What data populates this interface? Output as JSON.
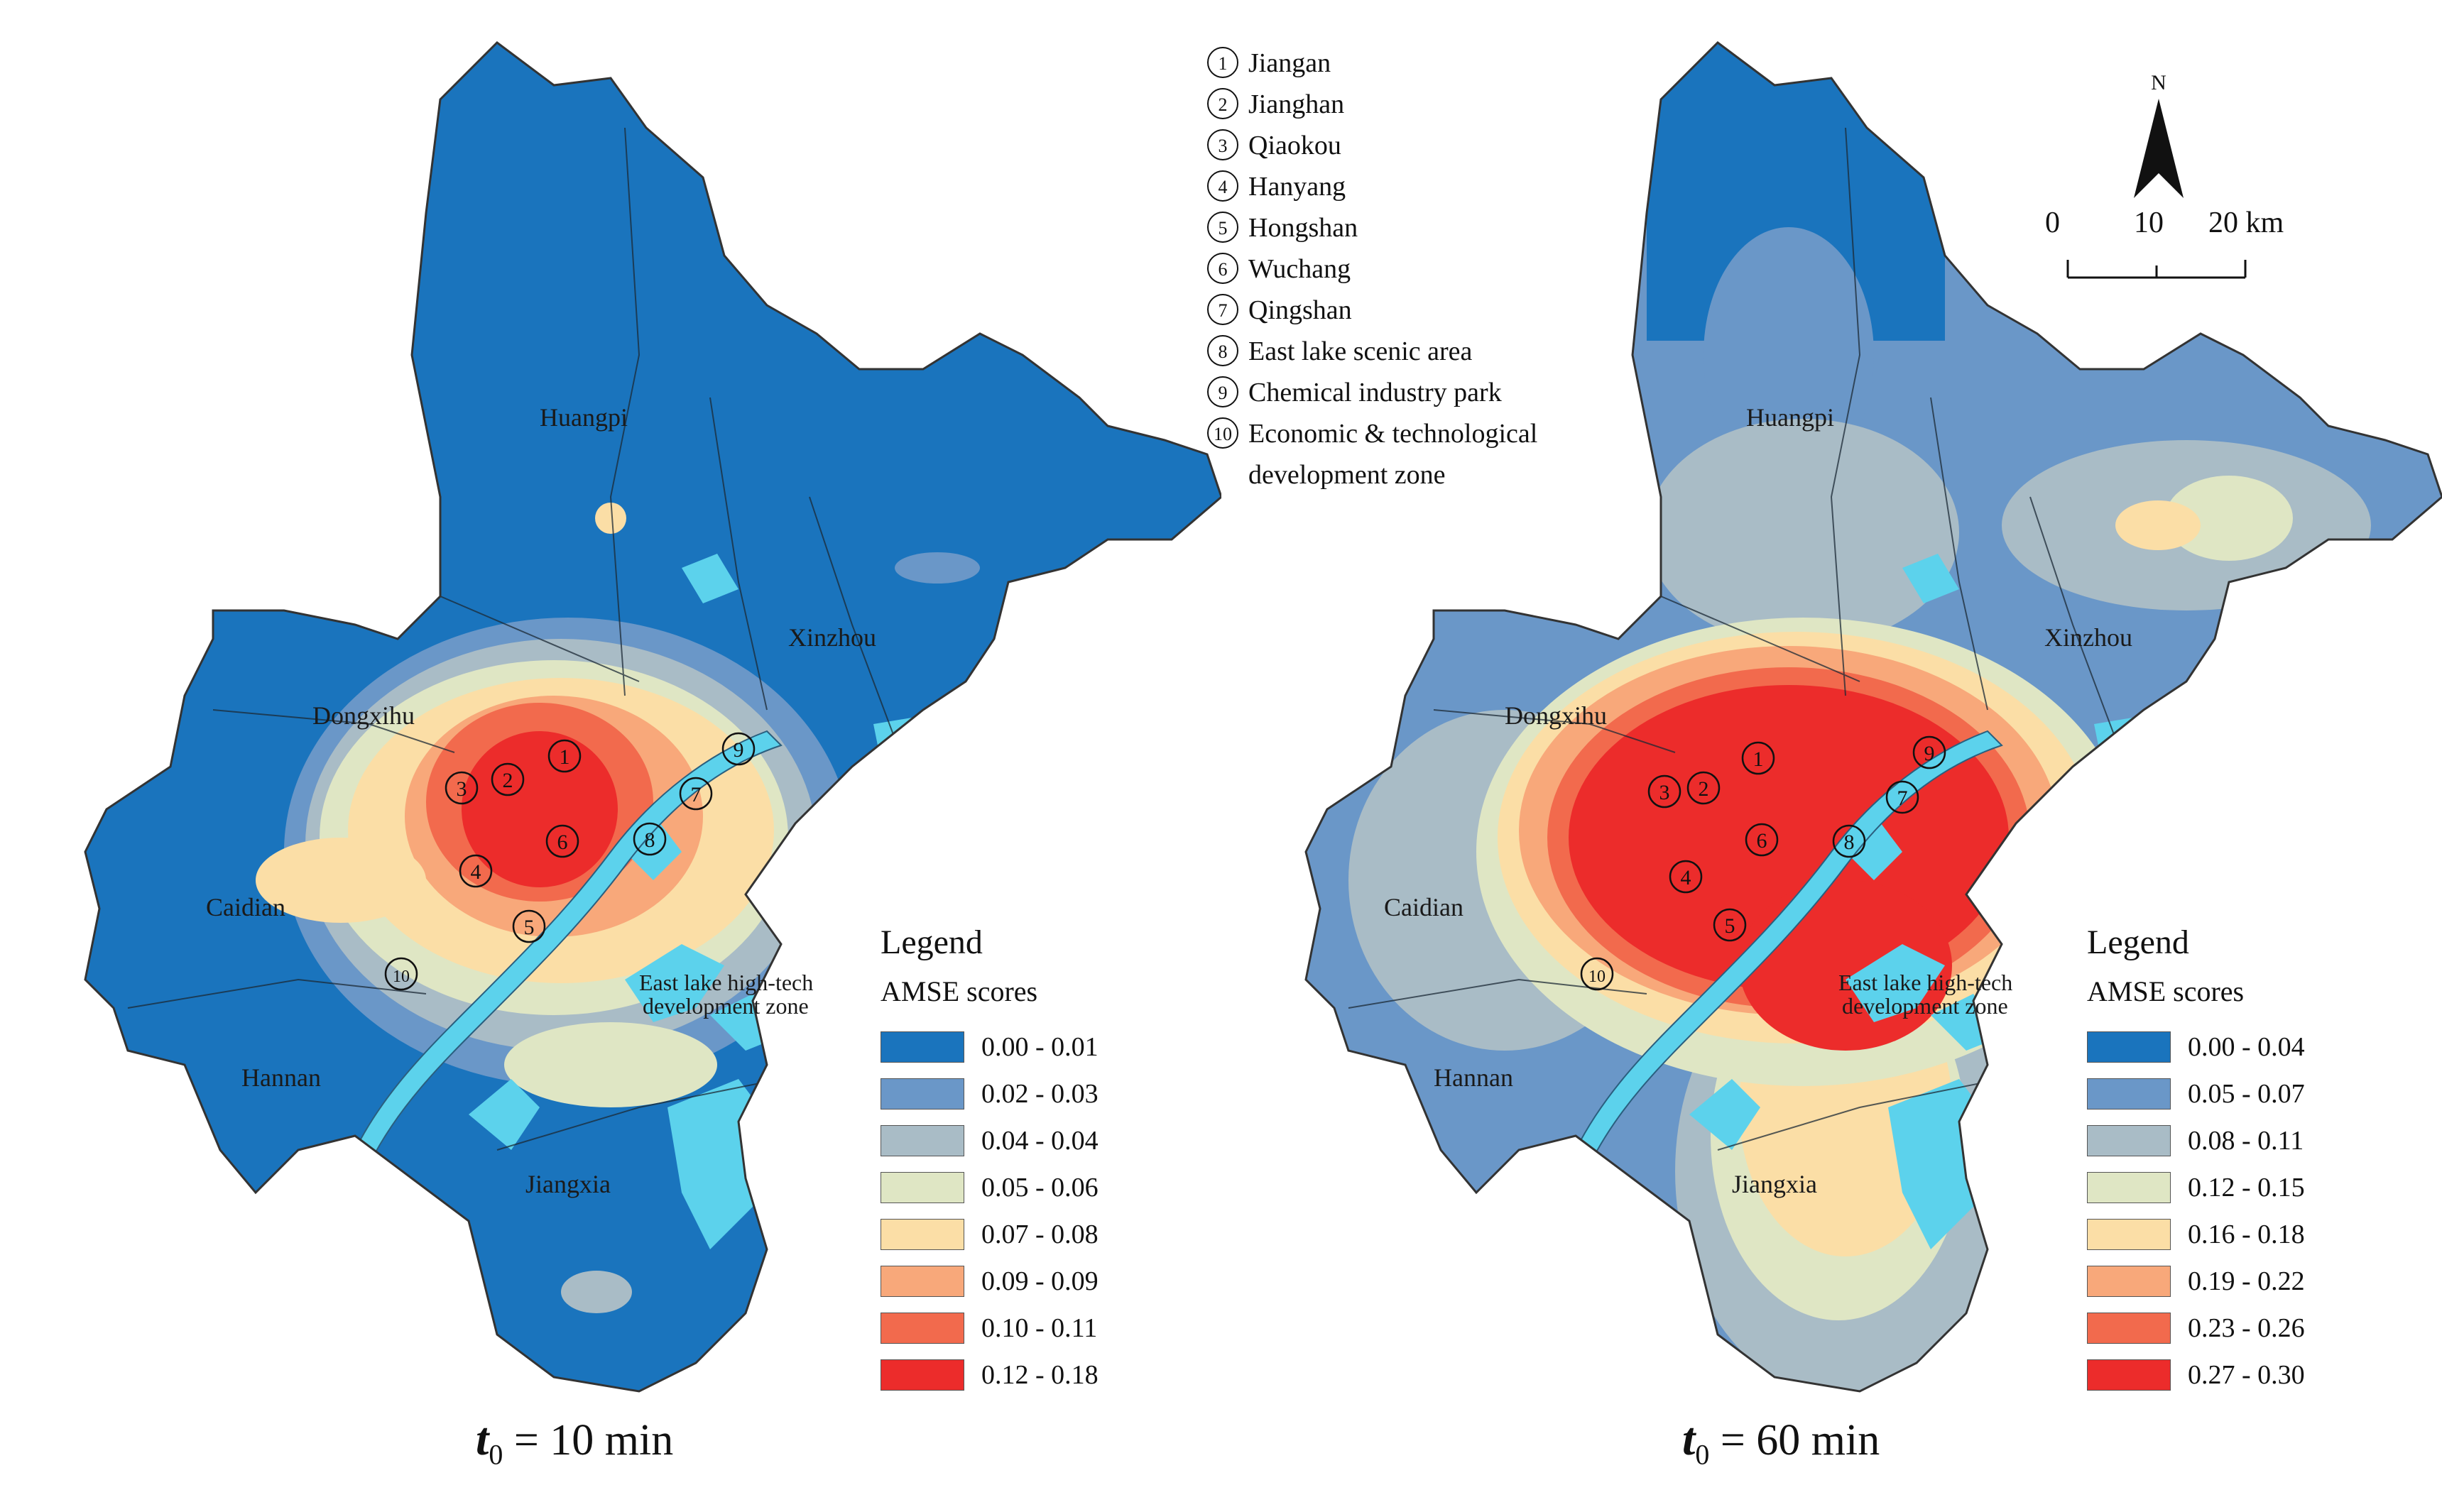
{
  "districts": [
    {
      "num": "1",
      "name": "Jiangan"
    },
    {
      "num": "2",
      "name": "Jianghan"
    },
    {
      "num": "3",
      "name": "Qiaokou"
    },
    {
      "num": "4",
      "name": "Hanyang"
    },
    {
      "num": "5",
      "name": "Hongshan"
    },
    {
      "num": "6",
      "name": "Wuchang"
    },
    {
      "num": "7",
      "name": "Qingshan"
    },
    {
      "num": "8",
      "name": "East lake scenic area"
    },
    {
      "num": "9",
      "name": "Chemical industry park"
    },
    {
      "num": "10",
      "name": "Economic & technological\ndevelopment zone"
    }
  ],
  "place_labels": {
    "huangpi": "Huangpi",
    "xinzhou": "Xinzhou",
    "dongxihu": "Dongxihu",
    "caidian": "Caidian",
    "hannan": "Hannan",
    "jiangxia": "Jiangxia",
    "east_lake_hightech": "East lake high-tech",
    "development_zone": "development zone"
  },
  "left_map": {
    "caption_symbol": "t",
    "caption_subscript": "0",
    "caption_rest": " = 10 min",
    "legend_title": "Legend",
    "legend_subtitle": "AMSE scores",
    "classes": [
      "0.00 - 0.01",
      "0.02 - 0.03",
      "0.04 - 0.04",
      "0.05 - 0.06",
      "0.07 - 0.08",
      "0.09 - 0.09",
      "0.10 - 0.11",
      "0.12 - 0.18"
    ]
  },
  "right_map": {
    "caption_symbol": "t",
    "caption_subscript": "0",
    "caption_rest": " = 60 min",
    "legend_title": "Legend",
    "legend_subtitle": "AMSE scores",
    "classes": [
      "0.00 - 0.04",
      "0.05 - 0.07",
      "0.08 - 0.11",
      "0.12 - 0.15",
      "0.16 - 0.18",
      "0.19 - 0.22",
      "0.23 - 0.26",
      "0.27 - 0.30"
    ]
  },
  "class_colors": [
    "#1a74bd",
    "#6a97c8",
    "#a9bcc6",
    "#dfe6c4",
    "#fbdea6",
    "#f8a87a",
    "#f26a4d",
    "#ec2c2b"
  ],
  "water_color": "#5cd2ec",
  "north_label": "N",
  "scale_labels": [
    "0",
    "10",
    "20 km"
  ]
}
